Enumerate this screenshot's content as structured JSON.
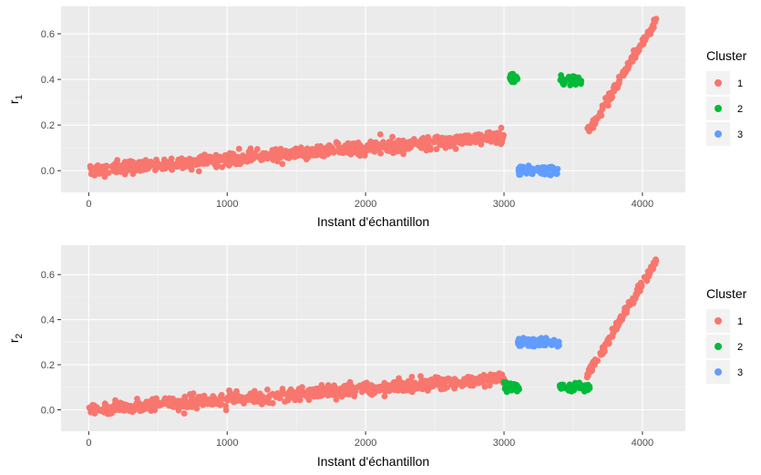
{
  "chart_data": [
    {
      "type": "scatter",
      "title": "",
      "xlabel": "Instant d'échantillon",
      "ylabel": "r",
      "ylabel_sub": "1",
      "xlim": [
        -200,
        4310
      ],
      "ylim": [
        -0.095,
        0.72
      ],
      "xticks": [
        0,
        1000,
        2000,
        3000,
        4000
      ],
      "xtick_labels": [
        "0",
        "1000",
        "2000",
        "3000",
        "4000"
      ],
      "yticks": [
        0.0,
        0.2,
        0.4,
        0.6
      ],
      "ytick_labels": [
        "0.0",
        "0.2",
        "0.4",
        "0.6"
      ],
      "grid": true,
      "legend": {
        "title": "Cluster",
        "position": "right"
      },
      "series": [
        {
          "name": "1",
          "color": "#F8766D",
          "segments": [
            {
              "x_range": [
                0,
                3000
              ],
              "y_start": 0.0,
              "y_end": 0.15,
              "noise": 0.025
            },
            {
              "x_range": [
                3600,
                4100
              ],
              "y_start": 0.16,
              "y_end": 0.66,
              "noise": 0.02
            }
          ]
        },
        {
          "name": "2",
          "color": "#00BA38",
          "segments": [
            {
              "x_range": [
                3040,
                3100
              ],
              "y_center": 0.405,
              "noise": 0.018
            },
            {
              "x_range": [
                3400,
                3560
              ],
              "y_center": 0.395,
              "noise": 0.018
            }
          ]
        },
        {
          "name": "3",
          "color": "#619CFF",
          "segments": [
            {
              "x_range": [
                3100,
                3400
              ],
              "y_center": 0.0,
              "noise": 0.018
            }
          ]
        }
      ]
    },
    {
      "type": "scatter",
      "title": "",
      "xlabel": "Instant d'échantillon",
      "ylabel": "r",
      "ylabel_sub": "2",
      "xlim": [
        -200,
        4310
      ],
      "ylim": [
        -0.095,
        0.73
      ],
      "xticks": [
        0,
        1000,
        2000,
        3000,
        4000
      ],
      "xtick_labels": [
        "0",
        "1000",
        "2000",
        "3000",
        "4000"
      ],
      "yticks": [
        0.0,
        0.2,
        0.4,
        0.6
      ],
      "ytick_labels": [
        "0.0",
        "0.2",
        "0.4",
        "0.6"
      ],
      "grid": true,
      "legend": {
        "title": "Cluster",
        "position": "right"
      },
      "series": [
        {
          "name": "1",
          "color": "#F8766D",
          "segments": [
            {
              "x_range": [
                0,
                3000
              ],
              "y_start": 0.0,
              "y_end": 0.14,
              "noise": 0.025
            },
            {
              "x_range": [
                3600,
                4100
              ],
              "y_start": 0.15,
              "y_end": 0.66,
              "noise": 0.02
            }
          ]
        },
        {
          "name": "2",
          "color": "#00BA38",
          "segments": [
            {
              "x_range": [
                3000,
                3110
              ],
              "y_center": 0.1,
              "noise": 0.018
            },
            {
              "x_range": [
                3400,
                3620
              ],
              "y_center": 0.1,
              "noise": 0.018
            }
          ]
        },
        {
          "name": "3",
          "color": "#619CFF",
          "segments": [
            {
              "x_range": [
                3100,
                3400
              ],
              "y_center": 0.3,
              "noise": 0.016
            }
          ]
        }
      ]
    }
  ]
}
